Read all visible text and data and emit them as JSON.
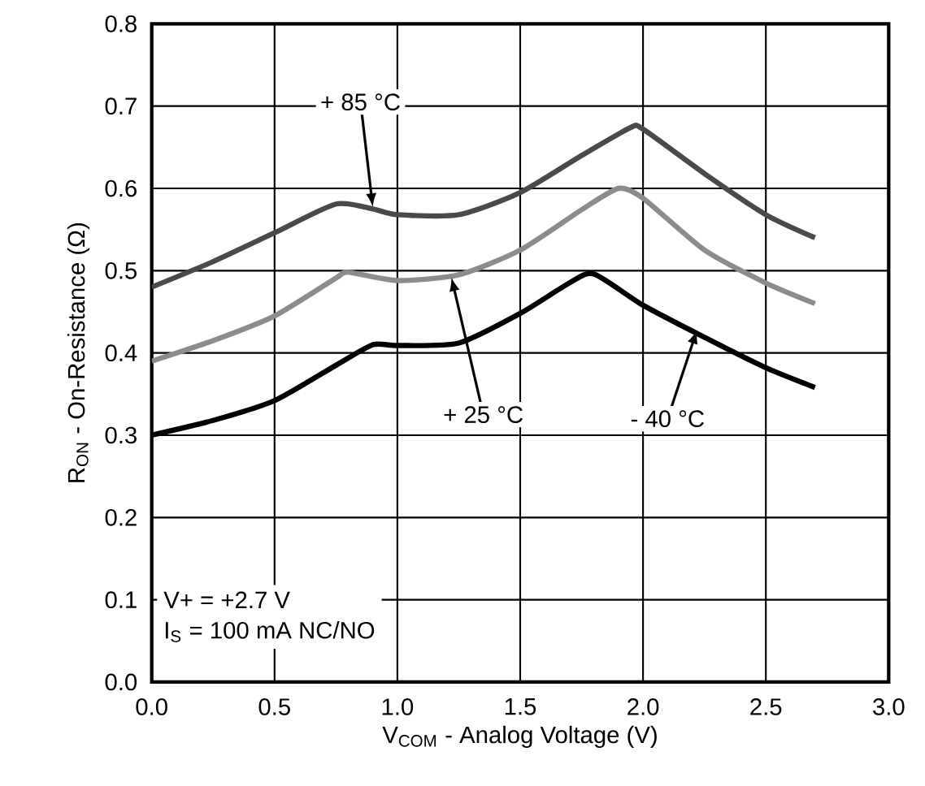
{
  "chart_data": {
    "type": "line",
    "xlabel": "V$_{COM}$ - Analog Voltage (V)",
    "ylabel": "R$_{ON}$ - On-Resistance (Ω)",
    "xlim": [
      0,
      3
    ],
    "ylim": [
      0,
      0.8
    ],
    "xticks": [
      {
        "value": 0,
        "label": "0.0"
      },
      {
        "value": 0.5,
        "label": "0.5"
      },
      {
        "value": 1,
        "label": "1.0"
      },
      {
        "value": 1.5,
        "label": "1.5"
      },
      {
        "value": 2,
        "label": "2.0"
      },
      {
        "value": 2.5,
        "label": "2.5"
      },
      {
        "value": 3,
        "label": "3.0"
      }
    ],
    "yticks": [
      {
        "value": 0,
        "label": "0.0"
      },
      0.1,
      0.2,
      0.3,
      0.4,
      0.5,
      0.6,
      0.7,
      0.8
    ],
    "grid": true,
    "legend": false,
    "marker": "none",
    "line_style": "solid",
    "x": [
      0,
      0.25,
      0.5,
      0.75,
      0.9,
      1.0,
      1.25,
      1.5,
      1.75,
      1.95,
      2.0,
      2.25,
      2.5,
      2.7
    ],
    "series": [
      {
        "name": "+ 85 °C",
        "color": "#4a4a4a",
        "values": [
          0.48,
          0.511,
          0.546,
          0.581,
          0.575,
          0.568,
          0.568,
          0.595,
          0.64,
          0.674,
          0.672,
          0.618,
          0.568,
          0.54
        ]
      },
      {
        "name": "+ 25 °C",
        "color": "#8c8c8c",
        "x": [
          0,
          0.25,
          0.5,
          0.75,
          0.8,
          1.0,
          1.25,
          1.5,
          1.75,
          1.9,
          2.0,
          2.25,
          2.5,
          2.7
        ],
        "values": [
          0.39,
          0.415,
          0.445,
          0.491,
          0.498,
          0.488,
          0.495,
          0.525,
          0.574,
          0.6,
          0.588,
          0.525,
          0.485,
          0.46
        ]
      },
      {
        "name": "- 40 °C",
        "color": "#000000",
        "x": [
          0,
          0.25,
          0.5,
          0.75,
          0.9,
          1.0,
          1.25,
          1.5,
          1.7,
          1.8,
          2.0,
          2.25,
          2.5,
          2.7
        ],
        "values": [
          0.3,
          0.318,
          0.342,
          0.385,
          0.41,
          0.409,
          0.412,
          0.448,
          0.485,
          0.496,
          0.458,
          0.419,
          0.382,
          0.358
        ]
      }
    ],
    "annotations": [
      "V+ = +2.7 V",
      "I$_{S}$ = 100 mA NC/NO"
    ]
  }
}
